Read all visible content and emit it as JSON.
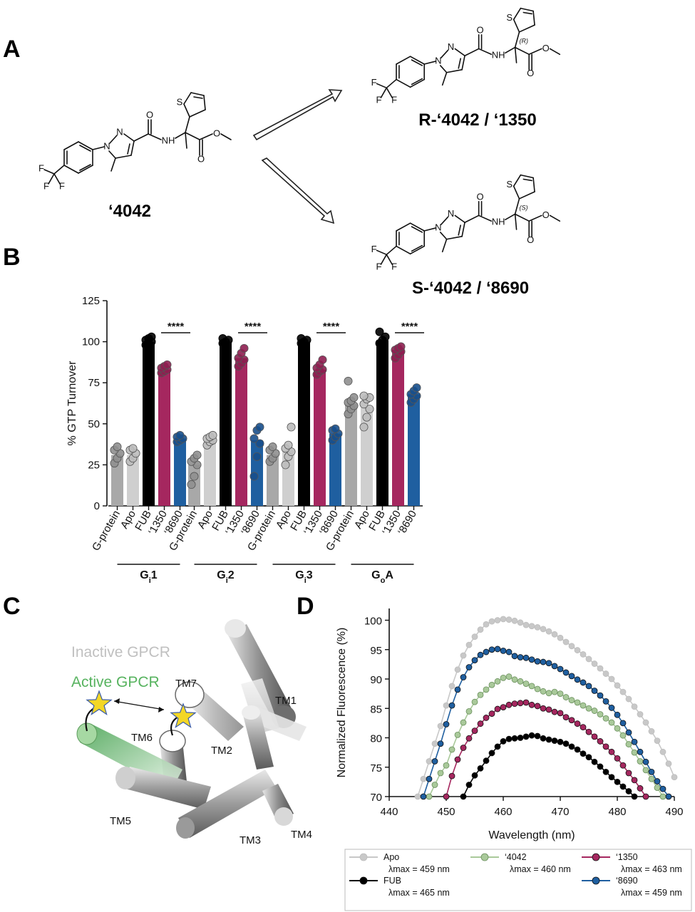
{
  "panels": {
    "a": {
      "letter": "A",
      "parent_compound": "‘4042",
      "product_r": "R-‘4042 / ‘1350",
      "product_s": "S-‘4042 / ‘8690",
      "stereo_r": "(R)",
      "stereo_s": "(S)",
      "atoms": {
        "N": "N",
        "NH": "NH",
        "O": "O",
        "S": "S",
        "F": "F"
      }
    },
    "b": {
      "letter": "B",
      "significance": "****",
      "bar_colors": {
        "G-protein": "#a8a8a8",
        "Apo": "#cfcfcf",
        "FUB": "#000000",
        "‘1350": "#a5275f",
        "‘8690": "#1f5fa0"
      },
      "point_colors": {
        "G-protein": "#8f8f8f",
        "Apo": "#bdbdbd",
        "FUB": "#000000",
        "‘1350": "#8e1e50",
        "‘8690": "#174f8c"
      }
    },
    "c": {
      "letter": "C",
      "inactive_label": "Inactive GPCR",
      "active_label": "Active GPCR",
      "tm_labels": [
        "TM1",
        "TM2",
        "TM3",
        "TM4",
        "TM5",
        "TM6",
        "TM7"
      ],
      "colors": {
        "inactive": "#b5b5b5",
        "active": "#5fbf6a",
        "star": "#f3d726"
      }
    },
    "d": {
      "letter": "D",
      "legend": [
        {
          "name": "Apo",
          "lambda": "λmax = 459 nm",
          "color": "#c8c8c8"
        },
        {
          "name": "‘4042",
          "lambda": "λmax = 460 nm",
          "color": "#a9c99a"
        },
        {
          "name": "‘1350",
          "lambda": "λmax = 463 nm",
          "color": "#a5275f"
        },
        {
          "name": "FUB",
          "lambda": "λmax = 465 nm",
          "color": "#000000"
        },
        {
          "name": "‘8690",
          "lambda": "λmax = 459 nm",
          "color": "#1f5fa0"
        }
      ]
    }
  },
  "chart_data": [
    {
      "type": "bar",
      "panel": "B",
      "ylabel": "% GTP Turnover",
      "ylim": [
        0,
        125
      ],
      "yticks": [
        0,
        25,
        50,
        75,
        100,
        125
      ],
      "categories": [
        "G-protein",
        "Apo",
        "FUB",
        "‘1350",
        "‘8690"
      ],
      "groups": [
        {
          "label": "G",
          "sub": "i",
          "num": "1",
          "values": [
            31,
            31,
            100,
            83,
            41
          ],
          "points": [
            [
              26,
              29,
              32,
              34,
              36
            ],
            [
              27,
              29,
              32,
              34,
              35
            ],
            [
              98,
              99,
              100,
              101,
              102,
              103
            ],
            [
              81,
              82,
              83,
              84,
              85,
              86
            ],
            [
              39,
              40,
              41,
              42,
              43
            ]
          ]
        },
        {
          "label": "G",
          "sub": "i",
          "num": "2",
          "values": [
            25,
            40,
            100,
            90,
            40
          ],
          "points": [
            [
              13,
              18,
              25,
              27,
              29,
              31
            ],
            [
              37,
              39,
              40,
              41,
              42,
              43
            ],
            [
              99,
              100,
              101,
              102
            ],
            [
              85,
              87,
              89,
              90,
              93,
              96
            ],
            [
              18,
              30,
              38,
              41,
              46,
              48
            ]
          ]
        },
        {
          "label": "G",
          "sub": "i",
          "num": "3",
          "values": [
            31,
            34,
            100,
            83,
            44
          ],
          "points": [
            [
              27,
              29,
              32,
              34,
              36
            ],
            [
              25,
              30,
              33,
              35,
              37,
              48
            ],
            [
              99,
              100,
              101,
              102
            ],
            [
              80,
              82,
              83,
              84,
              86,
              89
            ],
            [
              40,
              42,
              44,
              46,
              47
            ]
          ]
        },
        {
          "label": "G",
          "sub": "o",
          "num": "A",
          "values": [
            62,
            60,
            101,
            95,
            68
          ],
          "points": [
            [
              56,
              59,
              61,
              63,
              64,
              66,
              76
            ],
            [
              48,
              54,
              59,
              62,
              65,
              66,
              67
            ],
            [
              99,
              101,
              103,
              106
            ],
            [
              90,
              92,
              94,
              95,
              96,
              97
            ],
            [
              63,
              65,
              67,
              68,
              70,
              72
            ]
          ]
        }
      ]
    },
    {
      "type": "line",
      "panel": "D",
      "xlabel": "Wavelength (nm)",
      "ylabel": "Normalized Fluorescence (%)",
      "xlim": [
        440,
        490
      ],
      "ylim": [
        70,
        102
      ],
      "xticks": [
        440,
        450,
        460,
        470,
        480,
        490
      ],
      "yticks": [
        70,
        75,
        80,
        85,
        90,
        95,
        100
      ],
      "series": [
        {
          "name": "Apo",
          "x": [
            445,
            446,
            447,
            448,
            449,
            450,
            451,
            452,
            453,
            454,
            455,
            456,
            457,
            458,
            459,
            460,
            461,
            462,
            463,
            464,
            465,
            466,
            467,
            468,
            469,
            470,
            471,
            472,
            473,
            474,
            475,
            476,
            477,
            478,
            479,
            480,
            481,
            482,
            483,
            484,
            485,
            486,
            487,
            488,
            489,
            490
          ],
          "y": [
            70,
            73,
            76,
            79,
            82,
            85.5,
            88.8,
            91.6,
            94,
            95.8,
            97.2,
            98.4,
            99.3,
            99.8,
            100,
            100.2,
            100.1,
            99.9,
            99.6,
            99.2,
            99,
            98.8,
            98.5,
            98.1,
            97.6,
            97,
            96.3,
            95.6,
            94.9,
            94.2,
            93.4,
            92.6,
            91.8,
            90.9,
            90,
            88.9,
            87.8,
            86.6,
            85.3,
            84,
            82.6,
            81.1,
            79.5,
            77.6,
            75.6,
            73.3
          ]
        },
        {
          "name": "‘4042",
          "x": [
            447,
            448,
            449,
            450,
            451,
            452,
            453,
            454,
            455,
            456,
            457,
            458,
            459,
            460,
            461,
            462,
            463,
            464,
            465,
            466,
            467,
            468,
            469,
            470,
            471,
            472,
            473,
            474,
            475,
            476,
            477,
            478,
            479,
            480,
            481,
            482,
            483,
            484,
            485,
            486,
            487,
            488
          ],
          "y": [
            70,
            72,
            74,
            75.3,
            78,
            80.5,
            82.6,
            84.5,
            86.1,
            87.3,
            88.2,
            89,
            89.6,
            90.2,
            90.4,
            89.9,
            89.6,
            89.2,
            88.8,
            88.3,
            87.9,
            87.6,
            87.8,
            87.5,
            86.9,
            86.4,
            86,
            85.5,
            85,
            84.6,
            84,
            83.3,
            82.6,
            81.6,
            80.4,
            78.9,
            77.5,
            76,
            74.5,
            73,
            71.5,
            70
          ]
        },
        {
          "name": "‘1350",
          "x": [
            450,
            451,
            452,
            453,
            454,
            455,
            456,
            457,
            458,
            459,
            460,
            461,
            462,
            463,
            464,
            465,
            466,
            467,
            468,
            469,
            470,
            471,
            472,
            473,
            474,
            475,
            476,
            477,
            478,
            479,
            480,
            481,
            482,
            483,
            484,
            485
          ],
          "y": [
            70,
            73.5,
            76.3,
            78.3,
            79.9,
            81.2,
            82.4,
            83.4,
            84.1,
            84.9,
            85.2,
            85.6,
            85.8,
            85.9,
            86,
            85.6,
            85.4,
            85,
            84.8,
            84.4,
            84.2,
            83.5,
            83,
            82.4,
            81.8,
            81,
            80.2,
            79.4,
            78.5,
            77.6,
            76.5,
            75.3,
            74,
            72.8,
            71.4,
            70
          ]
        },
        {
          "name": "FUB",
          "x": [
            453,
            454,
            455,
            456,
            457,
            458,
            459,
            460,
            461,
            462,
            463,
            464,
            465,
            466,
            467,
            468,
            469,
            470,
            471,
            472,
            473,
            474,
            475,
            476,
            477,
            478,
            479,
            480,
            481,
            482,
            483
          ],
          "y": [
            70,
            72,
            73.6,
            74.8,
            76.1,
            77.4,
            78.5,
            79.4,
            79.8,
            79.9,
            80,
            80.2,
            80.4,
            80.3,
            79.9,
            79.7,
            79.5,
            79.3,
            79,
            78.5,
            78,
            77.3,
            76.7,
            75.9,
            75.1,
            74.2,
            73.3,
            72.5,
            71.7,
            70.9,
            70
          ]
        },
        {
          "name": "‘8690",
          "x": [
            446,
            447,
            448,
            449,
            450,
            451,
            452,
            453,
            454,
            455,
            456,
            457,
            458,
            459,
            460,
            461,
            462,
            463,
            464,
            465,
            466,
            467,
            468,
            469,
            470,
            471,
            472,
            473,
            474,
            475,
            476,
            477,
            478,
            479,
            480,
            481,
            482,
            483,
            484,
            485,
            486,
            487,
            488,
            489
          ],
          "y": [
            70,
            73,
            76,
            79,
            82.3,
            85.5,
            88.2,
            90.3,
            92,
            93.2,
            94.1,
            94.6,
            95,
            95.1,
            94.8,
            94.6,
            93.9,
            93.7,
            93.6,
            93.3,
            93,
            92.9,
            92.7,
            92.2,
            91.7,
            91.1,
            90.5,
            89.9,
            89.4,
            88.8,
            88,
            87.2,
            86.2,
            85.1,
            83.9,
            82.5,
            80.9,
            79.3,
            77.6,
            75.9,
            74.2,
            72.6,
            71.3,
            70
          ]
        }
      ]
    }
  ]
}
